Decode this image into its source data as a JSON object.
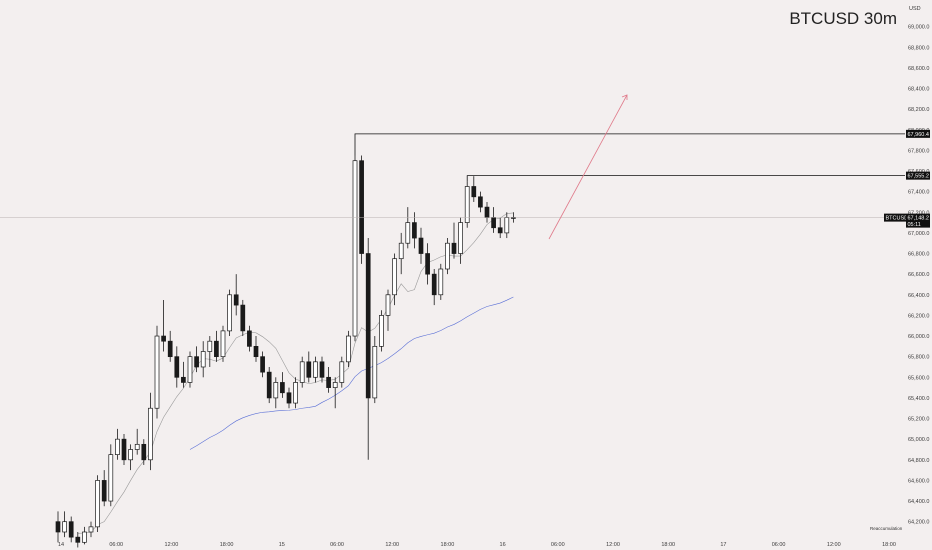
{
  "header": {
    "title": "BTCUSD 30m",
    "currency": "USD"
  },
  "price_tags": {
    "last_symbol": "BTCUSD",
    "last_price": "67,148.2",
    "last_countdown": "05:11",
    "high_level": "67,960.4",
    "second_level": "67,555.2"
  },
  "annotation": {
    "text": "Reaccumulation"
  },
  "colors": {
    "background": "#f3efef",
    "candle": "#1a1a1a",
    "fast_ma": "#9a9a9a",
    "slow_ma": "#5a6fd6",
    "projection_arrow": "#e07a8a",
    "level_line": "#111111"
  },
  "chart_data": {
    "type": "candlestick",
    "title": "BTCUSD 30m",
    "ylim": [
      64100,
      69200
    ],
    "y_ticks": [
      "69,000.0",
      "68,800.0",
      "68,600.0",
      "68,400.0",
      "68,200.0",
      "68,000.0",
      "67,800.0",
      "67,600.0",
      "67,400.0",
      "67,200.0",
      "67,000.0",
      "66,800.0",
      "66,600.0",
      "66,400.0",
      "66,200.0",
      "66,000.0",
      "65,800.0",
      "65,600.0",
      "65,400.0",
      "65,200.0",
      "65,000.0",
      "64,800.0",
      "64,600.0",
      "64,400.0",
      "64,200.0"
    ],
    "x_ticks": [
      "14",
      "06:00",
      "12:00",
      "18:00",
      "15",
      "06:00",
      "12:00",
      "18:00",
      "16",
      "06:00",
      "12:00",
      "18:00",
      "17",
      "06:00",
      "12:00",
      "18:00"
    ],
    "horizontal_levels": [
      67960.4,
      67555.2
    ],
    "last_price": 67148.2,
    "candles": [
      [
        64200,
        64300,
        64000,
        64100
      ],
      [
        64100,
        64300,
        64050,
        64200
      ],
      [
        64200,
        64250,
        64000,
        64050
      ],
      [
        64050,
        64100,
        63950,
        64000
      ],
      [
        64000,
        64150,
        63980,
        64100
      ],
      [
        64100,
        64200,
        64050,
        64150
      ],
      [
        64150,
        64650,
        64100,
        64600
      ],
      [
        64600,
        64700,
        64350,
        64400
      ],
      [
        64400,
        64950,
        64350,
        64850
      ],
      [
        64850,
        65100,
        64800,
        65000
      ],
      [
        65000,
        65050,
        64750,
        64800
      ],
      [
        64800,
        64950,
        64700,
        64900
      ],
      [
        64900,
        65100,
        64850,
        64950
      ],
      [
        64950,
        65000,
        64750,
        64800
      ],
      [
        64800,
        65450,
        64700,
        65300
      ],
      [
        65300,
        66100,
        65200,
        66000
      ],
      [
        66000,
        66350,
        65850,
        65950
      ],
      [
        65950,
        66050,
        65750,
        65800
      ],
      [
        65800,
        65900,
        65500,
        65600
      ],
      [
        65600,
        65750,
        65500,
        65550
      ],
      [
        65550,
        65850,
        65500,
        65800
      ],
      [
        65800,
        65900,
        65650,
        65700
      ],
      [
        65700,
        65950,
        65600,
        65850
      ],
      [
        65850,
        66000,
        65700,
        65950
      ],
      [
        65950,
        66050,
        65750,
        65800
      ],
      [
        65800,
        66100,
        65750,
        66050
      ],
      [
        66050,
        66450,
        66000,
        66400
      ],
      [
        66400,
        66600,
        66200,
        66300
      ],
      [
        66300,
        66350,
        66000,
        66050
      ],
      [
        66050,
        66100,
        65850,
        65900
      ],
      [
        65900,
        66000,
        65750,
        65800
      ],
      [
        65800,
        65850,
        65600,
        65650
      ],
      [
        65650,
        65700,
        65350,
        65400
      ],
      [
        65400,
        65600,
        65300,
        65550
      ],
      [
        65550,
        65650,
        65400,
        65450
      ],
      [
        65450,
        65500,
        65300,
        65350
      ],
      [
        65350,
        65600,
        65300,
        65550
      ],
      [
        65550,
        65800,
        65500,
        65750
      ],
      [
        65750,
        65850,
        65550,
        65600
      ],
      [
        65600,
        65800,
        65550,
        65750
      ],
      [
        65750,
        65800,
        65550,
        65600
      ],
      [
        65600,
        65700,
        65450,
        65500
      ],
      [
        65500,
        65600,
        65300,
        65550
      ],
      [
        65550,
        65800,
        65500,
        65750
      ],
      [
        65750,
        66050,
        65700,
        66000
      ],
      [
        66000,
        67750,
        65950,
        67700
      ],
      [
        67700,
        67750,
        66700,
        66800
      ],
      [
        66800,
        66950,
        64800,
        65400
      ],
      [
        65400,
        66000,
        65350,
        65900
      ],
      [
        65900,
        66250,
        65850,
        66200
      ],
      [
        66200,
        66450,
        66050,
        66400
      ],
      [
        66400,
        66800,
        66300,
        66750
      ],
      [
        66750,
        67000,
        66600,
        66900
      ],
      [
        66900,
        67250,
        66850,
        67100
      ],
      [
        67100,
        67200,
        66850,
        66950
      ],
      [
        66950,
        67050,
        66700,
        66800
      ],
      [
        66800,
        66900,
        66500,
        66600
      ],
      [
        66600,
        66650,
        66300,
        66400
      ],
      [
        66400,
        66700,
        66350,
        66650
      ],
      [
        66650,
        66950,
        66600,
        66900
      ],
      [
        66900,
        67100,
        66750,
        66800
      ],
      [
        66800,
        67150,
        66700,
        67100
      ],
      [
        67100,
        67500,
        67050,
        67450
      ],
      [
        67450,
        67550,
        67300,
        67350
      ],
      [
        67350,
        67400,
        67200,
        67250
      ],
      [
        67250,
        67300,
        67100,
        67150
      ],
      [
        67150,
        67250,
        67000,
        67050
      ],
      [
        67050,
        67150,
        66950,
        67000
      ],
      [
        67000,
        67200,
        66950,
        67150
      ],
      [
        67150,
        67200,
        67100,
        67148
      ]
    ]
  }
}
